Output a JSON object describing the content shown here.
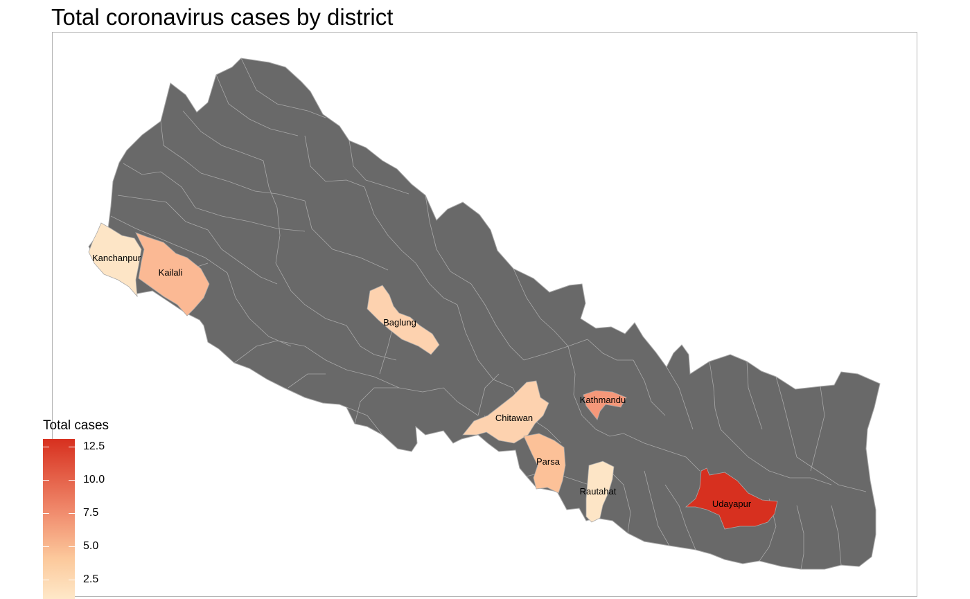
{
  "title": "Total coronavirus cases by district",
  "legend": {
    "title": "Total cases",
    "ticks": [
      "12.5",
      "10.0",
      "7.5",
      "5.0",
      "2.5"
    ],
    "low_color": "#fee8c8",
    "high_color": "#d7301f"
  },
  "colors": {
    "no_data": "#696969",
    "border": "#a8a8a8",
    "panel_border": "#b3b3b3"
  },
  "chart_data": {
    "type": "choropleth",
    "title": "Total coronavirus cases by district",
    "legend_title": "Total cases",
    "scale_range": [
      1,
      13
    ],
    "legend_ticks": [
      2.5,
      5.0,
      7.5,
      10.0,
      12.5
    ],
    "districts": [
      {
        "name": "Kanchanpur",
        "cases": 1
      },
      {
        "name": "Kailali",
        "cases": 5
      },
      {
        "name": "Baglung",
        "cases": 2
      },
      {
        "name": "Chitawan",
        "cases": 2
      },
      {
        "name": "Kathmandu",
        "cases": 6
      },
      {
        "name": "Parsa",
        "cases": 4
      },
      {
        "name": "Rautahat",
        "cases": 1
      },
      {
        "name": "Udayapur",
        "cases": 13
      }
    ]
  }
}
